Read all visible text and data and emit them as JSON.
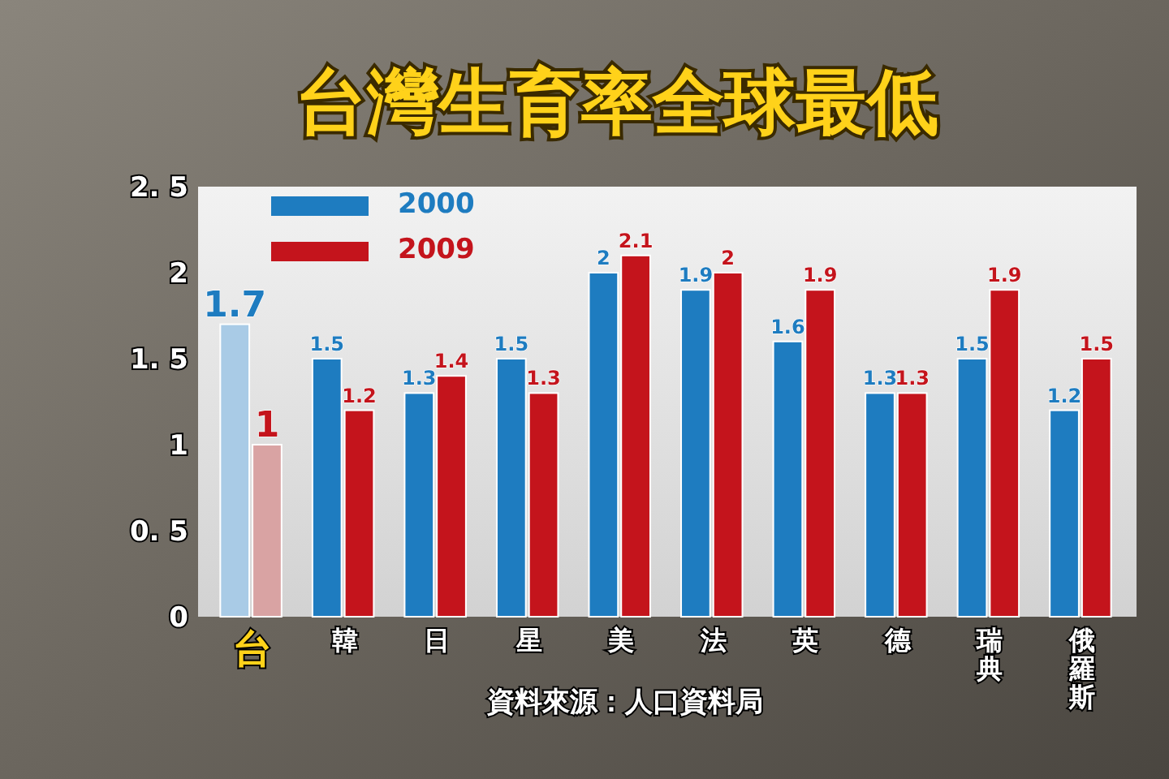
{
  "chart_data": {
    "type": "bar",
    "title": "台灣生育率全球最低",
    "categories": [
      "台",
      "韓",
      "日",
      "星",
      "美",
      "法",
      "英",
      "德",
      "瑞典",
      "俄羅斯"
    ],
    "series": [
      {
        "name": "2000",
        "color": "#1e7cc0",
        "colors": [
          "#a9cbe6",
          "#1e7cc0",
          "#1e7cc0",
          "#1e7cc0",
          "#1e7cc0",
          "#1e7cc0",
          "#1e7cc0",
          "#1e7cc0",
          "#1e7cc0",
          "#1e7cc0"
        ],
        "values": [
          1.7,
          1.5,
          1.3,
          1.5,
          2,
          1.9,
          1.6,
          1.3,
          1.5,
          1.2
        ]
      },
      {
        "name": "2009",
        "color": "#c4141c",
        "colors": [
          "#d9a3a3",
          "#c4141c",
          "#c4141c",
          "#c4141c",
          "#c4141c",
          "#c4141c",
          "#c4141c",
          "#c4141c",
          "#c4141c",
          "#c4141c"
        ],
        "values": [
          1,
          1.2,
          1.4,
          1.3,
          2.1,
          2,
          1.9,
          1.3,
          1.9,
          1.5
        ]
      }
    ],
    "ylim": [
      0,
      2.5
    ],
    "yticks": [
      0,
      {
        "value": 0.5,
        "label": "0. 5"
      },
      1,
      {
        "value": 1.5,
        "label": "1. 5"
      },
      2,
      {
        "value": 2.5,
        "label": "2. 5"
      }
    ],
    "data_labels": true,
    "legend": "top left",
    "grid": false,
    "annotations": [
      "資料來源：人口資料局"
    ]
  }
}
